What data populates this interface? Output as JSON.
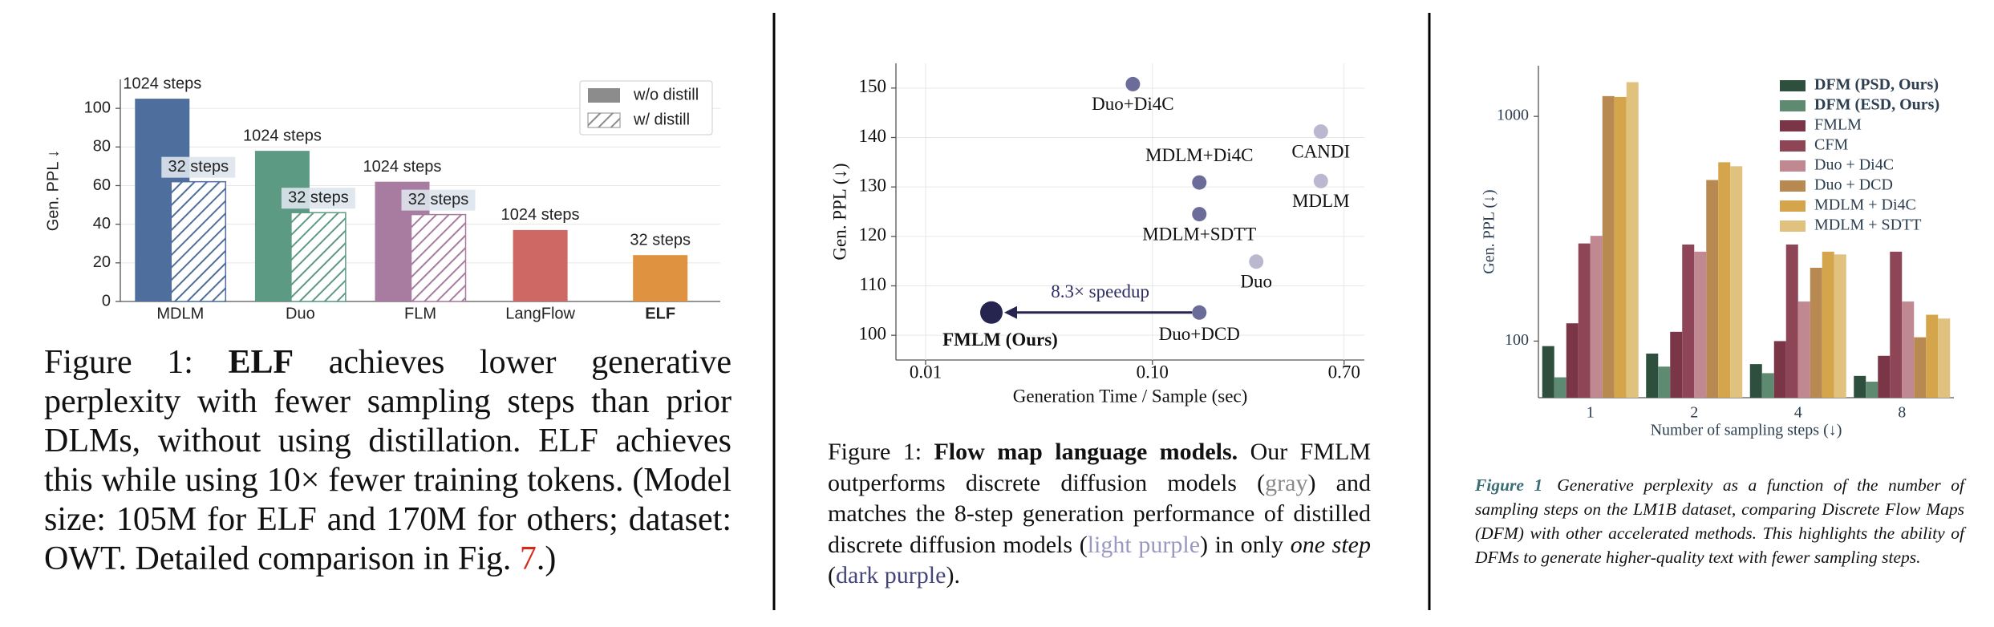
{
  "chart_data": [
    {
      "type": "bar",
      "ylabel": "Gen. PPL ↓",
      "categories": [
        "MDLM",
        "Duo",
        "FLM",
        "LangFlow",
        "ELF"
      ],
      "category_colors": [
        "#4e6f9e",
        "#5d9a84",
        "#a87ca0",
        "#cd6864",
        "#df923f"
      ],
      "series": [
        {
          "name": "w/o distill",
          "color": "#8c8c8c",
          "values": [
            105,
            78,
            62,
            37,
            24
          ]
        },
        {
          "name": "w/ distill",
          "color": "#8c8c8c",
          "hatch": true,
          "values": [
            62,
            46,
            45,
            null,
            null
          ]
        }
      ],
      "bar_labels": [
        [
          "1024 steps",
          "1024 steps",
          "1024 steps",
          "1024 steps",
          "32 steps"
        ],
        [
          "32 steps",
          "32 steps",
          "32 steps",
          null,
          null
        ]
      ],
      "ylim": [
        0,
        115
      ],
      "yticks": [
        0,
        20,
        40,
        60,
        80,
        100
      ],
      "grid": true,
      "legend": "upper right"
    },
    {
      "type": "scatter",
      "xlabel": "Generation Time / Sample (sec)",
      "ylabel": "Gen. PPL (↓)",
      "log_x": true,
      "labels": [
        "Duo+Di4C",
        "MDLM+Di4C",
        "MDLM+SDTT",
        "Duo+DCD",
        "CANDI",
        "MDLM",
        "Duo",
        "FMLM (Ours)"
      ],
      "x": [
        0.082,
        0.161,
        0.161,
        0.161,
        0.553,
        0.553,
        0.287,
        0.0195
      ],
      "values": [
        150.8,
        130.9,
        124.5,
        104.6,
        141.2,
        131.2,
        114.9,
        104.6
      ],
      "colors": [
        "#6c6c9b",
        "#6c6c9b",
        "#6c6c9b",
        "#6c6c9b",
        "#bab8cf",
        "#bab8cf",
        "#bab8cf",
        "#25254f"
      ],
      "xlim": [
        0.0074,
        0.86
      ],
      "xticks": [
        0.01,
        {
          "value": 0.1,
          "label": "0.10"
        },
        {
          "value": 0.7,
          "label": "0.70"
        }
      ],
      "ylim": [
        95,
        155
      ],
      "yticks": [
        100,
        110,
        120,
        130,
        140,
        150
      ],
      "grid": true,
      "annotation": "8.3× speedup"
    },
    {
      "type": "bar",
      "log_y": true,
      "xlabel": "Number of sampling steps (↓)",
      "ylabel": "Gen. PPL (↓)",
      "categories": [
        "1",
        "2",
        "4",
        "8"
      ],
      "series": [
        {
          "name": "DFM (PSD, Ours)",
          "color": "#2f4f3e",
          "values": [
            95,
            88,
            79,
            70
          ]
        },
        {
          "name": "DFM (ESD, Ours)",
          "color": "#5f8a72",
          "values": [
            69,
            77,
            72,
            66
          ]
        },
        {
          "name": "FMLM",
          "color": "#7a3547",
          "values": [
            120,
            110,
            100,
            86
          ]
        },
        {
          "name": "CFM",
          "color": "#8e4556",
          "values": [
            272,
            269,
            269,
            250
          ]
        },
        {
          "name": "Duo + Di4C",
          "color": "#c08890",
          "values": [
            294,
            250,
            150,
            150
          ]
        },
        {
          "name": "Duo + DCD",
          "color": "#b88a52",
          "values": [
            1231,
            521,
            212,
            104
          ]
        },
        {
          "name": "MDLM + Di4C",
          "color": "#d4a54a",
          "values": [
            1220,
            625,
            250,
            131
          ]
        },
        {
          "name": "MDLM + SDTT",
          "color": "#e0c27e",
          "values": [
            1420,
            600,
            243,
            126
          ]
        }
      ],
      "ylim": [
        56,
        1680
      ],
      "yticks": [
        100,
        1000
      ],
      "grid": false,
      "legend": "upper right"
    }
  ],
  "captions": [
    [
      "Figure 1: ",
      "ELF",
      " achieves lower generative perplexity with fewer sampling steps than prior DLMs, without using distillation. ELF achieves this while using 10× fewer training tokens. (Model size: 105M for ELF and 170M for others; dataset: OWT. Detailed comparison in Fig. ",
      "7",
      ".)"
    ],
    [
      "Figure 1: ",
      "Flow map language models.",
      " Our FMLM outperforms discrete diffusion models (",
      "gray",
      ") and matches the 8-step generation performance of distilled discrete diffusion models (",
      "light purple",
      ") in only ",
      "one step",
      " (",
      "dark purple",
      ")."
    ],
    [
      "Figure 1",
      "Generative perplexity as a function of the number of sampling steps on the LM1B dataset, comparing Discrete Flow Maps (DFM) with other accelerated methods. This highlights the ability of DFMs to generate higher-quality text with fewer sampling steps."
    ]
  ]
}
